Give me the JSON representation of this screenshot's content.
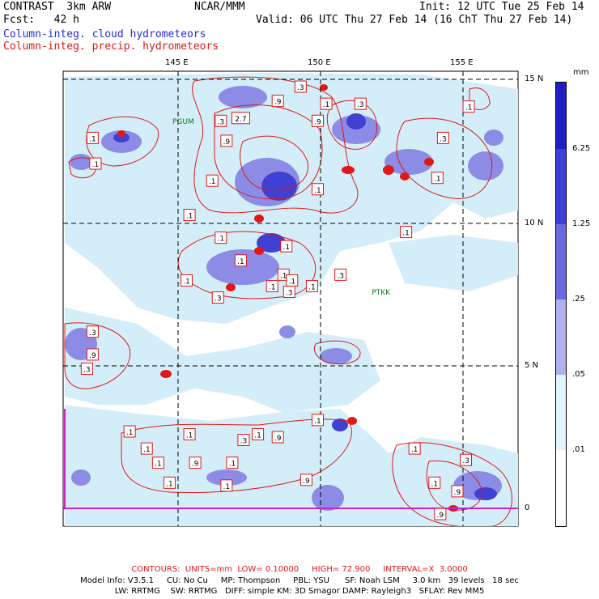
{
  "header": {
    "run": "CONTRAST  3km ARW",
    "center": "NCAR/MMM",
    "init": "Init: 12 UTC Tue 25 Feb 14",
    "fcst": "Fcst:   42 h",
    "valid": "Valid: 06 UTC Thu 27 Feb 14 (16 ChT Thu 27 Feb 14)",
    "field1": "Column-integ. cloud hydrometeors",
    "field2": "Column-integ. precip. hydrometeors"
  },
  "axes": {
    "lon_labels": [
      "145 E",
      "150 E",
      "155 E"
    ],
    "lat_labels": [
      "15 N",
      "10 N",
      "5 N",
      "0"
    ]
  },
  "stations": [
    {
      "name": "PGUM",
      "lon": 144.8,
      "lat": 13.5
    },
    {
      "name": "PTKK",
      "lon": 151.8,
      "lat": 7.5
    }
  ],
  "contour_labels": [
    {
      "v": ".3",
      "lon": 149.3,
      "lat": 14.8
    },
    {
      "v": ".1",
      "lon": 150.2,
      "lat": 14.2
    },
    {
      "v": ".9",
      "lon": 148.5,
      "lat": 14.3
    },
    {
      "v": "2.7",
      "lon": 147.2,
      "lat": 13.7
    },
    {
      "v": ".3",
      "lon": 146.5,
      "lat": 13.6
    },
    {
      "v": ".9",
      "lon": 146.7,
      "lat": 12.9
    },
    {
      "v": ".9",
      "lon": 149.9,
      "lat": 13.6
    },
    {
      "v": ".3",
      "lon": 151.4,
      "lat": 14.2
    },
    {
      "v": ".1",
      "lon": 155.2,
      "lat": 14.1
    },
    {
      "v": ".3",
      "lon": 154.3,
      "lat": 13.0
    },
    {
      "v": ".1",
      "lon": 142.0,
      "lat": 13.0
    },
    {
      "v": ".1",
      "lon": 142.1,
      "lat": 12.1
    },
    {
      "v": ".1",
      "lon": 146.2,
      "lat": 11.5
    },
    {
      "v": ".1",
      "lon": 149.9,
      "lat": 11.2
    },
    {
      "v": ".1",
      "lon": 145.4,
      "lat": 10.3
    },
    {
      "v": ".1",
      "lon": 154.1,
      "lat": 11.6
    },
    {
      "v": ".1",
      "lon": 153.0,
      "lat": 9.7
    },
    {
      "v": ".1",
      "lon": 146.5,
      "lat": 9.5
    },
    {
      "v": ".1",
      "lon": 148.8,
      "lat": 9.2
    },
    {
      "v": ".1",
      "lon": 147.2,
      "lat": 8.7
    },
    {
      "v": ".1",
      "lon": 148.7,
      "lat": 8.2
    },
    {
      "v": ".1",
      "lon": 148.3,
      "lat": 7.8
    },
    {
      "v": ".1",
      "lon": 149.0,
      "lat": 8.0
    },
    {
      "v": ".1",
      "lon": 145.3,
      "lat": 8.0
    },
    {
      "v": ".3",
      "lon": 146.4,
      "lat": 7.4
    },
    {
      "v": ".3",
      "lon": 148.9,
      "lat": 7.6
    },
    {
      "v": ".3",
      "lon": 150.7,
      "lat": 8.2
    },
    {
      "v": ".1",
      "lon": 149.7,
      "lat": 7.8
    },
    {
      "v": ".3",
      "lon": 142.0,
      "lat": 6.2
    },
    {
      "v": ".9",
      "lon": 142.0,
      "lat": 5.4
    },
    {
      "v": ".3",
      "lon": 141.8,
      "lat": 4.9
    },
    {
      "v": ".1",
      "lon": 140.6,
      "lat": 4.6
    },
    {
      "v": ".1",
      "lon": 149.9,
      "lat": 3.1
    },
    {
      "v": ".1",
      "lon": 143.3,
      "lat": 2.7
    },
    {
      "v": ".1",
      "lon": 145.4,
      "lat": 2.6
    },
    {
      "v": ".3",
      "lon": 147.3,
      "lat": 2.4
    },
    {
      "v": ".1",
      "lon": 147.8,
      "lat": 2.6
    },
    {
      "v": ".9",
      "lon": 148.5,
      "lat": 2.5
    },
    {
      "v": ".1",
      "lon": 143.9,
      "lat": 2.1
    },
    {
      "v": ".1",
      "lon": 144.3,
      "lat": 1.6
    },
    {
      "v": ".9",
      "lon": 145.6,
      "lat": 1.6
    },
    {
      "v": ".1",
      "lon": 146.9,
      "lat": 1.6
    },
    {
      "v": ".9",
      "lon": 149.5,
      "lat": 1.0
    },
    {
      "v": ".1",
      "lon": 144.7,
      "lat": 0.9
    },
    {
      "v": ".1",
      "lon": 146.7,
      "lat": 0.8
    },
    {
      "v": ".1",
      "lon": 153.3,
      "lat": 2.1
    },
    {
      "v": ".3",
      "lon": 155.1,
      "lat": 1.7
    },
    {
      "v": ".1",
      "lon": 154.0,
      "lat": 0.9
    },
    {
      "v": ".9",
      "lon": 154.8,
      "lat": 0.6
    },
    {
      "v": ".9",
      "lon": 154.2,
      "lat": -0.2
    }
  ],
  "colorbar": {
    "unit": "mm",
    "labels": [
      ".01",
      ".05",
      ".25",
      "1.25",
      "6.25"
    ],
    "colors": [
      "#ffffff",
      "#dff4fb",
      "#b0dff2",
      "#9090e6",
      "#6a6ade",
      "#3f3fd8",
      "#1e1ec4"
    ]
  },
  "colors": {
    "cloud": "#7878e0",
    "cloud_light": "#c9ebf7",
    "cloud_dark": "#3535d0",
    "precip": "#e01818",
    "grid": "#000000",
    "boundary": "#cc22cc"
  },
  "footer": {
    "contours": "CONTOURS:  UNITS=mm  LOW= 0.10000     HIGH= 72.900     INTERVAL=X  3.0000",
    "model1": "Model Info: V3.5.1     CU: No Cu     MP: Thompson     PBL: YSU      SF: Noah LSM     3.0 km   39 levels   18 sec",
    "model2": "LW: RRTMG    SW: RRTMG   DIFF: simple KM: 3D Smagor DAMP: Rayleigh3   SFLAY: Rev MM5"
  }
}
